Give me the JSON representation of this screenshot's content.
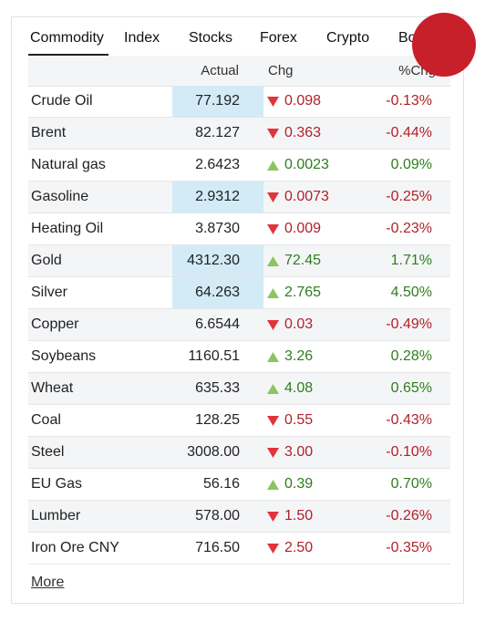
{
  "tabs": [
    "Commodity",
    "Index",
    "Stocks",
    "Forex",
    "Crypto",
    "Bo"
  ],
  "active_tab": 0,
  "columns": [
    "Actual",
    "Chg",
    "%Chg"
  ],
  "rows": [
    [
      "Crude Oil",
      "77.192",
      "0.098",
      "-0.13%"
    ],
    [
      "Brent",
      "82.127",
      "0.363",
      "-0.44%"
    ],
    [
      "Natural gas",
      "2.6423",
      "0.0023",
      "0.09%"
    ],
    [
      "Gasoline",
      "2.9312",
      "0.0073",
      "-0.25%"
    ],
    [
      "Heating Oil",
      "3.8730",
      "0.009",
      "-0.23%"
    ],
    [
      "Gold",
      "4312.30",
      "72.45",
      "1.71%"
    ],
    [
      "Silver",
      "64.263",
      "2.765",
      "4.50%"
    ],
    [
      "Copper",
      "6.6544",
      "0.03",
      "-0.49%"
    ],
    [
      "Soybeans",
      "1160.51",
      "3.26",
      "0.28%"
    ],
    [
      "Wheat",
      "635.33",
      "4.08",
      "0.65%"
    ],
    [
      "Coal",
      "128.25",
      "0.55",
      "-0.43%"
    ],
    [
      "Steel",
      "3008.00",
      "3.00",
      "-0.10%"
    ],
    [
      "EU Gas",
      "56.16",
      "0.39",
      "0.70%"
    ],
    [
      "Lumber",
      "578.00",
      "1.50",
      "-0.26%"
    ],
    [
      "Iron Ore CNY",
      "716.50",
      "2.50",
      "-0.35%"
    ]
  ],
  "highlighted_rows": [
    0,
    3,
    5,
    6
  ],
  "more_link": "More"
}
